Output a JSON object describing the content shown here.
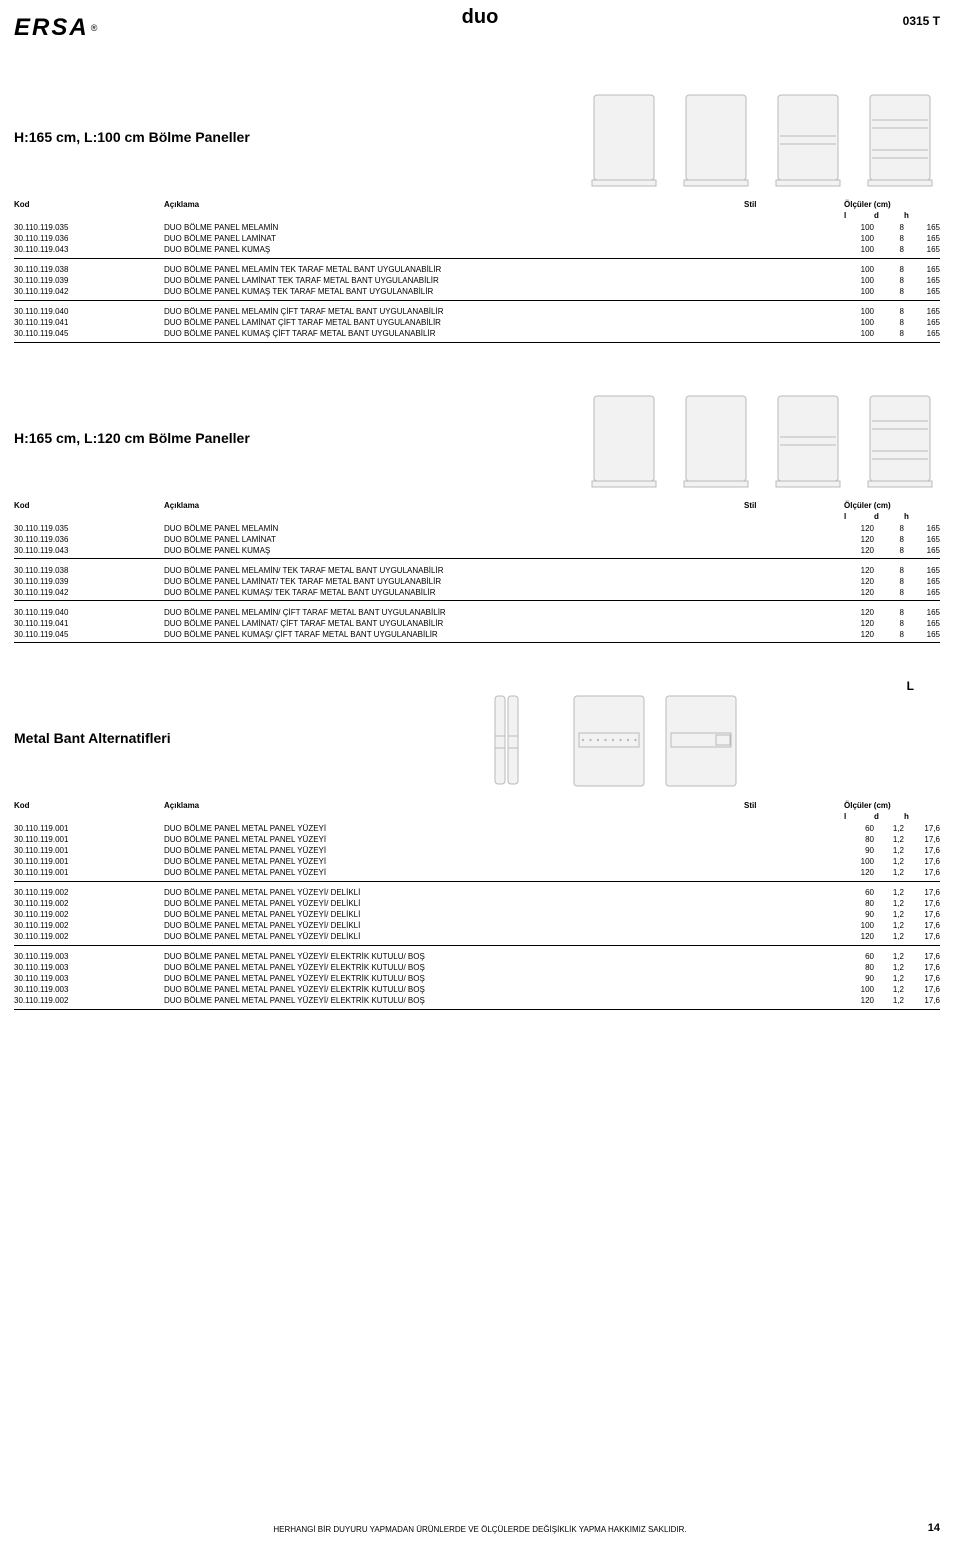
{
  "meta": {
    "logo": "ERSA",
    "regmark": "®",
    "center_title": "duo",
    "topright": "0315 T",
    "footer": "HERHANGİ BİR DUYURU YAPMADAN ÜRÜNLERDE VE ÖLÇÜLERDE DEĞİŞİKLİK YAPMA HAKKIMIZ SAKLIDIR.",
    "page_num": "14"
  },
  "colors": {
    "panel_fill": "#f2f2f2",
    "panel_stroke": "#b9b9b9",
    "text": "#000000",
    "bg": "#ffffff",
    "divider": "#000000"
  },
  "headers": {
    "kod": "Kod",
    "aciklama": "Açıklama",
    "stil": "Stil",
    "olcu": "Ölçüler (cm)",
    "l": "l",
    "d": "d",
    "h": "h"
  },
  "sections": [
    {
      "title": "H:165 cm, L:100 cm Bölme Paneller",
      "thumbs": [
        "panel_plain",
        "panel_plain",
        "panel_1line",
        "panel_2line"
      ],
      "legend_L": false,
      "groups": [
        [
          {
            "code": "30.110.119.035",
            "desc": "DUO BÖLME PANEL MELAMİN",
            "l": "100",
            "d": "8",
            "h": "165"
          },
          {
            "code": "30.110.119.036",
            "desc": "DUO BÖLME PANEL LAMİNAT",
            "l": "100",
            "d": "8",
            "h": "165"
          },
          {
            "code": "30.110.119.043",
            "desc": "DUO BÖLME PANEL KUMAŞ",
            "l": "100",
            "d": "8",
            "h": "165"
          }
        ],
        [
          {
            "code": "30.110.119.038",
            "desc": "DUO BÖLME PANEL MELAMİN TEK TARAF METAL BANT UYGULANABİLİR",
            "l": "100",
            "d": "8",
            "h": "165"
          },
          {
            "code": "30.110.119.039",
            "desc": "DUO BÖLME PANEL LAMİNAT TEK TARAF METAL BANT UYGULANABİLİR",
            "l": "100",
            "d": "8",
            "h": "165"
          },
          {
            "code": "30.110.119.042",
            "desc": "DUO BÖLME PANEL KUMAŞ TEK TARAF METAL BANT UYGULANABİLİR",
            "l": "100",
            "d": "8",
            "h": "165"
          }
        ],
        [
          {
            "code": "30.110.119.040",
            "desc": "DUO BÖLME PANEL MELAMİN ÇİFT TARAF METAL BANT UYGULANABİLİR",
            "l": "100",
            "d": "8",
            "h": "165"
          },
          {
            "code": "30.110.119.041",
            "desc": "DUO BÖLME PANEL LAMİNAT ÇİFT TARAF METAL BANT UYGULANABİLİR",
            "l": "100",
            "d": "8",
            "h": "165"
          },
          {
            "code": "30.110.119.045",
            "desc": "DUO BÖLME PANEL KUMAŞ ÇİFT TARAF METAL BANT UYGULANABİLİR",
            "l": "100",
            "d": "8",
            "h": "165"
          }
        ]
      ]
    },
    {
      "title": "H:165 cm, L:120 cm Bölme Paneller",
      "thumbs": [
        "panel_plain",
        "panel_plain",
        "panel_1line",
        "panel_2line"
      ],
      "legend_L": false,
      "groups": [
        [
          {
            "code": "30.110.119.035",
            "desc": "DUO BÖLME PANEL MELAMİN",
            "l": "120",
            "d": "8",
            "h": "165"
          },
          {
            "code": "30.110.119.036",
            "desc": "DUO BÖLME PANEL LAMİNAT",
            "l": "120",
            "d": "8",
            "h": "165"
          },
          {
            "code": "30.110.119.043",
            "desc": "DUO BÖLME PANEL KUMAŞ",
            "l": "120",
            "d": "8",
            "h": "165"
          }
        ],
        [
          {
            "code": "30.110.119.038",
            "desc": "DUO BÖLME PANEL MELAMİN/ TEK TARAF METAL BANT UYGULANABİLİR",
            "l": "120",
            "d": "8",
            "h": "165"
          },
          {
            "code": "30.110.119.039",
            "desc": "DUO BÖLME PANEL LAMİNAT/ TEK TARAF METAL BANT UYGULANABİLİR",
            "l": "120",
            "d": "8",
            "h": "165"
          },
          {
            "code": "30.110.119.042",
            "desc": "DUO BÖLME PANEL KUMAŞ/ TEK TARAF METAL BANT UYGULANABİLİR",
            "l": "120",
            "d": "8",
            "h": "165"
          }
        ],
        [
          {
            "code": "30.110.119.040",
            "desc": "DUO BÖLME PANEL MELAMİN/ ÇİFT TARAF METAL BANT UYGULANABİLİR",
            "l": "120",
            "d": "8",
            "h": "165"
          },
          {
            "code": "30.110.119.041",
            "desc": "DUO BÖLME PANEL LAMİNAT/ ÇİFT TARAF METAL BANT UYGULANABİLİR",
            "l": "120",
            "d": "8",
            "h": "165"
          },
          {
            "code": "30.110.119.045",
            "desc": "DUO BÖLME PANEL KUMAŞ/ ÇİFT TARAF METAL BANT UYGULANABİLİR",
            "l": "120",
            "d": "8",
            "h": "165"
          }
        ]
      ]
    },
    {
      "title": "Metal Bant Alternatifleri",
      "thumbs": [
        "panel_narrow_band",
        "panel_band_holes",
        "panel_band_front"
      ],
      "legend_L": true,
      "legend_L_text": "L",
      "groups": [
        [
          {
            "code": "30.110.119.001",
            "desc": "DUO BÖLME PANEL METAL PANEL YÜZEYİ",
            "l": "60",
            "d": "1,2",
            "h": "17,6"
          },
          {
            "code": "30.110.119.001",
            "desc": "DUO BÖLME PANEL METAL PANEL YÜZEYİ",
            "l": "80",
            "d": "1,2",
            "h": "17,6"
          },
          {
            "code": "30.110.119.001",
            "desc": "DUO BÖLME PANEL METAL PANEL YÜZEYİ",
            "l": "90",
            "d": "1,2",
            "h": "17,6"
          },
          {
            "code": "30.110.119.001",
            "desc": "DUO BÖLME PANEL METAL PANEL YÜZEYİ",
            "l": "100",
            "d": "1,2",
            "h": "17,6"
          },
          {
            "code": "30.110.119.001",
            "desc": "DUO BÖLME PANEL METAL PANEL YÜZEYİ",
            "l": "120",
            "d": "1,2",
            "h": "17,6"
          }
        ],
        [
          {
            "code": "30.110.119.002",
            "desc": "DUO BÖLME PANEL METAL PANEL YÜZEYİ/ DELİKLİ",
            "l": "60",
            "d": "1,2",
            "h": "17,6"
          },
          {
            "code": "30.110.119.002",
            "desc": "DUO BÖLME PANEL METAL PANEL YÜZEYİ/ DELİKLİ",
            "l": "80",
            "d": "1,2",
            "h": "17,6"
          },
          {
            "code": "30.110.119.002",
            "desc": "DUO BÖLME PANEL METAL PANEL YÜZEYİ/ DELİKLİ",
            "l": "90",
            "d": "1,2",
            "h": "17,6"
          },
          {
            "code": "30.110.119.002",
            "desc": "DUO BÖLME PANEL METAL PANEL YÜZEYİ/ DELİKLİ",
            "l": "100",
            "d": "1,2",
            "h": "17,6"
          },
          {
            "code": "30.110.119.002",
            "desc": "DUO BÖLME PANEL METAL PANEL YÜZEYİ/ DELİKLİ",
            "l": "120",
            "d": "1,2",
            "h": "17,6"
          }
        ],
        [
          {
            "code": "30.110.119.003",
            "desc": "DUO BÖLME PANEL METAL PANEL YÜZEYİ/ ELEKTRİK KUTULU/ BOŞ",
            "l": "60",
            "d": "1,2",
            "h": "17,6"
          },
          {
            "code": "30.110.119.003",
            "desc": "DUO BÖLME PANEL METAL PANEL YÜZEYİ/ ELEKTRİK KUTULU/ BOŞ",
            "l": "80",
            "d": "1,2",
            "h": "17,6"
          },
          {
            "code": "30.110.119.003",
            "desc": "DUO BÖLME PANEL METAL PANEL YÜZEYİ/ ELEKTRİK KUTULU/ BOŞ",
            "l": "90",
            "d": "1,2",
            "h": "17,6"
          },
          {
            "code": "30.110.119.003",
            "desc": "DUO BÖLME PANEL METAL PANEL YÜZEYİ/ ELEKTRİK KUTULU/ BOŞ",
            "l": "100",
            "d": "1,2",
            "h": "17,6"
          },
          {
            "code": "30.110.119.002",
            "desc": "DUO BÖLME PANEL METAL PANEL YÜZEYİ/ ELEKTRİK KUTULU/ BOŞ",
            "l": "120",
            "d": "1,2",
            "h": "17,6"
          }
        ]
      ]
    }
  ]
}
